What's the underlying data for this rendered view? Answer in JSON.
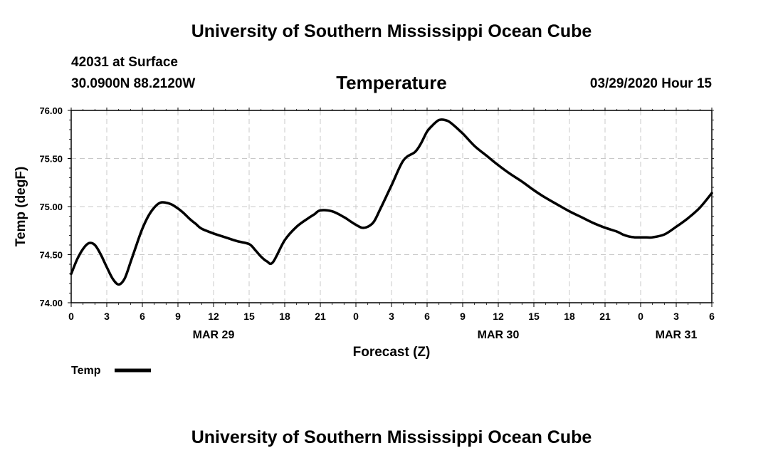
{
  "header": {
    "top_title": "University of Southern Mississippi Ocean Cube",
    "station": "42031 at Surface",
    "coords": "30.0900N 88.2120W",
    "chart_title": "Temperature",
    "valid_time": "03/29/2020 Hour 15"
  },
  "footer": {
    "bottom_title": "University of Southern Mississippi Ocean Cube"
  },
  "chart_data": {
    "type": "line",
    "title": "Temperature",
    "xlabel": "Forecast (Z)",
    "ylabel": "Temp (degF)",
    "x_unit": "forecast hours from 03/29/2020 00Z",
    "xlim": [
      0,
      54
    ],
    "ylim": [
      74.0,
      76.0
    ],
    "y_ticks": [
      "74.00",
      "74.50",
      "75.00",
      "75.50",
      "76.00"
    ],
    "x_ticks": [
      "0",
      "3",
      "6",
      "9",
      "12",
      "15",
      "18",
      "21",
      "0",
      "3",
      "6",
      "9",
      "12",
      "15",
      "18",
      "21",
      "0",
      "3",
      "6"
    ],
    "date_labels": [
      {
        "label": "MAR 29",
        "x": 12
      },
      {
        "label": "MAR 30",
        "x": 36
      },
      {
        "label": "MAR 31",
        "x": 51
      }
    ],
    "grid": true,
    "legend_position": "bottom-left",
    "series": [
      {
        "name": "Temp",
        "color": "#000000",
        "x": [
          0,
          0.5,
          1,
          1.5,
          2,
          2.5,
          3,
          3.5,
          4,
          4.5,
          5,
          5.5,
          6,
          6.5,
          7,
          7.5,
          8,
          8.5,
          9,
          9.5,
          10,
          10.5,
          11,
          12,
          13,
          14,
          15,
          15.5,
          16,
          16.5,
          17,
          18,
          19,
          20,
          20.5,
          21,
          22,
          23,
          23.5,
          24,
          24.5,
          25,
          25.5,
          26,
          27,
          28,
          29,
          29.5,
          30,
          30.5,
          31,
          31.5,
          32,
          33,
          34,
          35,
          36,
          37,
          38,
          39,
          40,
          41,
          42,
          43,
          44,
          45,
          46,
          46.5,
          47,
          47.5,
          48,
          48.5,
          49,
          50,
          51,
          52,
          53,
          54
        ],
        "values": [
          74.3,
          74.45,
          74.56,
          74.62,
          74.6,
          74.5,
          74.37,
          74.25,
          74.19,
          74.25,
          74.42,
          74.6,
          74.77,
          74.9,
          74.99,
          75.04,
          75.04,
          75.02,
          74.98,
          74.93,
          74.87,
          74.82,
          74.77,
          74.72,
          74.68,
          74.64,
          74.61,
          74.55,
          74.48,
          74.43,
          74.42,
          74.65,
          74.79,
          74.88,
          74.92,
          74.96,
          74.95,
          74.89,
          74.85,
          74.81,
          74.78,
          74.79,
          74.84,
          74.96,
          75.22,
          75.48,
          75.57,
          75.66,
          75.78,
          75.85,
          75.9,
          75.9,
          75.87,
          75.76,
          75.63,
          75.53,
          75.43,
          75.34,
          75.26,
          75.17,
          75.09,
          75.02,
          74.95,
          74.89,
          74.83,
          74.78,
          74.74,
          74.71,
          74.69,
          74.68,
          74.68,
          74.68,
          74.68,
          74.71,
          74.79,
          74.88,
          74.99,
          75.14
        ]
      }
    ]
  }
}
